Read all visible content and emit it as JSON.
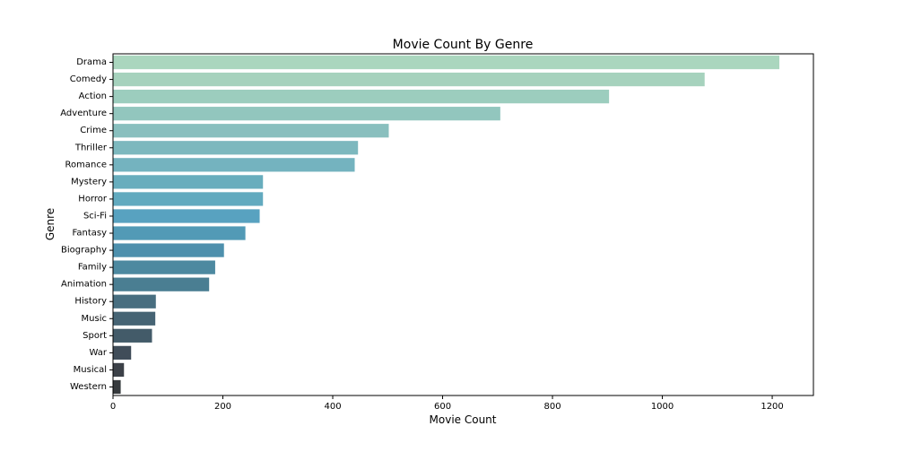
{
  "chart_data": {
    "type": "bar",
    "orientation": "horizontal",
    "title": "Movie Count By Genre",
    "xlabel": "Movie Count",
    "ylabel": "Genre",
    "xlim": [
      0,
      1275
    ],
    "xticks": [
      0,
      200,
      400,
      600,
      800,
      1000,
      1200
    ],
    "grid": false,
    "legend": "none",
    "categories": [
      "Drama",
      "Comedy",
      "Action",
      "Adventure",
      "Crime",
      "Thriller",
      "Romance",
      "Mystery",
      "Horror",
      "Sci-Fi",
      "Fantasy",
      "Biography",
      "Family",
      "Animation",
      "History",
      "Music",
      "Sport",
      "War",
      "Musical",
      "Western"
    ],
    "values": [
      1213,
      1077,
      903,
      705,
      502,
      446,
      440,
      273,
      273,
      267,
      241,
      202,
      186,
      175,
      78,
      77,
      71,
      33,
      20,
      14
    ],
    "colors": [
      "#aad6be",
      "#a6d2bd",
      "#9ccdbe",
      "#92c6be",
      "#89bfbe",
      "#7db8be",
      "#74b3bf",
      "#68adbd",
      "#62aabf",
      "#58a2c0",
      "#529ab6",
      "#4e90ad",
      "#4d89a0",
      "#4a7e92",
      "#486e80",
      "#466474",
      "#435b69",
      "#404d59",
      "#3c4148",
      "#363a3d"
    ]
  }
}
